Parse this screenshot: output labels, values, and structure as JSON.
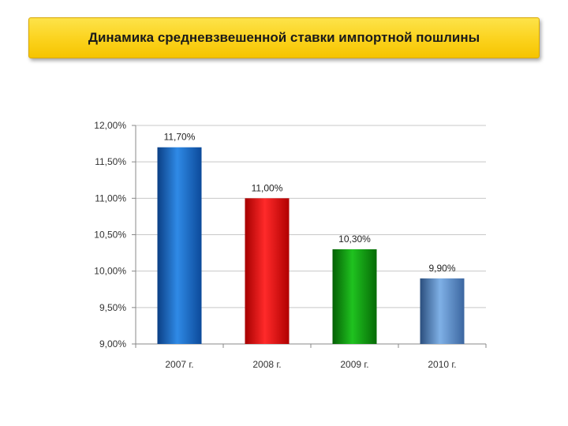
{
  "title": "Динамика средневзвешенной ставки импортной пошлины",
  "chart_data": {
    "type": "bar",
    "title": "Динамика средневзвешенной ставки импортной пошлины",
    "categories": [
      "2007 г.",
      "2008 г.",
      "2009 г.",
      "2010 г."
    ],
    "values": [
      11.7,
      11.0,
      10.3,
      9.9
    ],
    "data_labels": [
      "11,70%",
      "11,00%",
      "10,30%",
      "9,90%"
    ],
    "ylim": [
      9.0,
      12.0
    ],
    "yticks": [
      9.0,
      9.5,
      10.0,
      10.5,
      11.0,
      11.5,
      12.0
    ],
    "ytick_labels": [
      "9,00%",
      "9,50%",
      "10,00%",
      "10,50%",
      "11,00%",
      "11,50%",
      "12,00%"
    ],
    "grid": true,
    "legend": "none",
    "colors": [
      "#1f6fc4",
      "#e81010",
      "#0e9a0e",
      "#5b8fc8"
    ],
    "xlabel": "",
    "ylabel": ""
  }
}
